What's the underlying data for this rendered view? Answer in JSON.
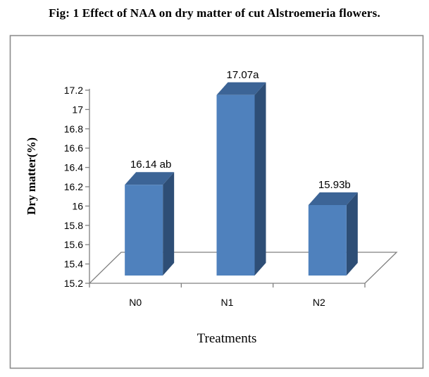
{
  "title": "Fig: 1 Effect of NAA on dry matter of cut Alstroemeria flowers.",
  "chart_data": {
    "type": "bar",
    "style": "3d-column",
    "title": "Fig: 1 Effect of NAA on dry matter of cut Alstroemeria flowers.",
    "xlabel": "Treatments",
    "ylabel": "Dry matter(%)",
    "categories": [
      "N0",
      "N1",
      "N2"
    ],
    "values": [
      16.14,
      17.07,
      15.93
    ],
    "data_labels": [
      "16.14 ab",
      "17.07a",
      "15.93b"
    ],
    "ylim": [
      15.2,
      17.2
    ],
    "ytick_step": 0.2,
    "ytick_labels": [
      "15.2",
      "15.4",
      "15.6",
      "15.8",
      "16",
      "16.2",
      "16.4",
      "16.6",
      "16.8",
      "17",
      "17.2"
    ],
    "grid": false,
    "legend": "none",
    "colors": {
      "bar_front": "#4F81BD",
      "bar_side": "#2E4E76",
      "bar_top": "#3C6496",
      "axis_line": "#808080",
      "frame_border": "#8C8C8C",
      "text": "#000000",
      "background": "#FFFFFF"
    }
  }
}
